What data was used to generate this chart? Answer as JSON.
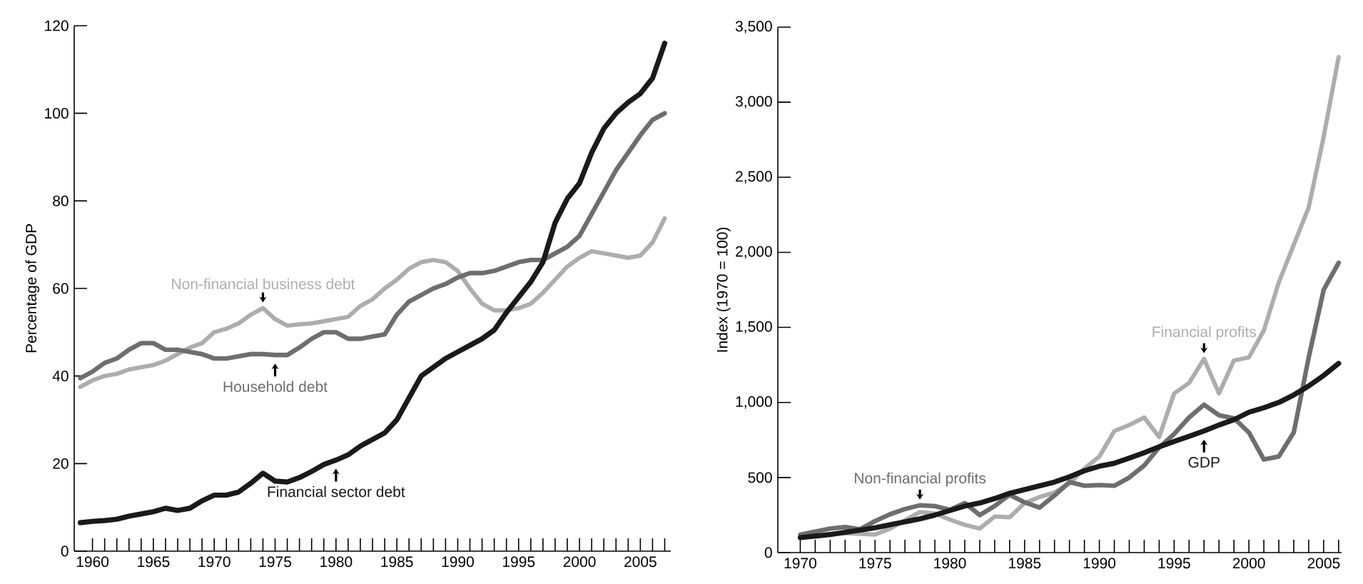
{
  "chart_data": [
    {
      "type": "line",
      "ylabel": "Percentage of GDP",
      "x": [
        1959,
        1960,
        1961,
        1962,
        1963,
        1964,
        1965,
        1966,
        1967,
        1968,
        1969,
        1970,
        1971,
        1972,
        1973,
        1974,
        1975,
        1976,
        1977,
        1978,
        1979,
        1980,
        1981,
        1982,
        1983,
        1984,
        1985,
        1986,
        1987,
        1988,
        1989,
        1990,
        1991,
        1992,
        1993,
        1994,
        1995,
        1996,
        1997,
        1998,
        1999,
        2000,
        2001,
        2002,
        2003,
        2004,
        2005,
        2006,
        2007
      ],
      "series": [
        {
          "name": "Non-financial business debt",
          "color": "#adadad",
          "values": [
            37.5,
            39,
            40,
            40.5,
            41.5,
            42,
            42.5,
            43.5,
            45,
            46.5,
            47.5,
            50,
            50.8,
            52,
            54,
            55.5,
            53,
            51.5,
            51.8,
            52,
            52.5,
            53,
            53.5,
            56,
            57.5,
            60,
            62,
            64.5,
            66,
            66.5,
            66,
            64,
            60,
            56.5,
            55,
            55,
            55.5,
            56.5,
            59,
            62,
            65,
            67,
            68.5,
            68,
            67.5,
            67,
            67.5,
            70.5,
            76
          ]
        },
        {
          "name": "Household debt",
          "color": "#6e6e6e",
          "values": [
            39.5,
            41,
            43,
            44,
            46,
            47.5,
            47.5,
            46,
            46,
            45.5,
            45,
            44,
            44,
            44.5,
            45,
            45,
            44.8,
            44.8,
            46.5,
            48.5,
            50,
            50,
            48.5,
            48.5,
            49,
            49.5,
            54,
            57,
            58.5,
            60,
            61,
            62.5,
            63.5,
            63.5,
            64,
            65,
            66,
            66.5,
            66.5,
            68,
            69.5,
            72,
            77,
            82,
            87,
            91,
            95,
            98.5,
            100
          ]
        },
        {
          "name": "Financial sector debt",
          "color": "#1a1a1a",
          "values": [
            6.5,
            6.8,
            7,
            7.3,
            8,
            8.5,
            9,
            9.8,
            9.3,
            9.8,
            11.5,
            12.8,
            12.8,
            13.5,
            15.5,
            17.8,
            16,
            15.8,
            16.8,
            18.2,
            19.8,
            20.8,
            22,
            24,
            25.5,
            27,
            30,
            35,
            40,
            42,
            44,
            45.5,
            47,
            48.5,
            50.5,
            54.5,
            58,
            61.5,
            66,
            75,
            80.5,
            84,
            91,
            96.5,
            100,
            102.5,
            104.5,
            108,
            116
          ]
        }
      ],
      "xlim": [
        1958.5,
        2007.5
      ],
      "ylim": [
        0,
        120
      ],
      "xticks": [
        1960,
        {
          "value": 1961,
          "label": null
        },
        {
          "value": 1962,
          "label": null
        },
        {
          "value": 1963,
          "label": null
        },
        {
          "value": 1964,
          "label": null
        },
        1965,
        {
          "value": 1966,
          "label": null
        },
        {
          "value": 1967,
          "label": null
        },
        {
          "value": 1968,
          "label": null
        },
        {
          "value": 1969,
          "label": null
        },
        1970,
        {
          "value": 1971,
          "label": null
        },
        {
          "value": 1972,
          "label": null
        },
        {
          "value": 1973,
          "label": null
        },
        {
          "value": 1974,
          "label": null
        },
        1975,
        {
          "value": 1976,
          "label": null
        },
        {
          "value": 1977,
          "label": null
        },
        {
          "value": 1978,
          "label": null
        },
        {
          "value": 1979,
          "label": null
        },
        1980,
        {
          "value": 1981,
          "label": null
        },
        {
          "value": 1982,
          "label": null
        },
        {
          "value": 1983,
          "label": null
        },
        {
          "value": 1984,
          "label": null
        },
        1985,
        {
          "value": 1986,
          "label": null
        },
        {
          "value": 1987,
          "label": null
        },
        {
          "value": 1988,
          "label": null
        },
        {
          "value": 1989,
          "label": null
        },
        1990,
        {
          "value": 1991,
          "label": null
        },
        {
          "value": 1992,
          "label": null
        },
        {
          "value": 1993,
          "label": null
        },
        {
          "value": 1994,
          "label": null
        },
        1995,
        {
          "value": 1996,
          "label": null
        },
        {
          "value": 1997,
          "label": null
        },
        {
          "value": 1998,
          "label": null
        },
        {
          "value": 1999,
          "label": null
        },
        2000,
        {
          "value": 2001,
          "label": null
        },
        {
          "value": 2002,
          "label": null
        },
        {
          "value": 2003,
          "label": null
        },
        {
          "value": 2004,
          "label": null
        },
        2005,
        {
          "value": 2006,
          "label": null
        },
        {
          "value": 2007,
          "label": null
        }
      ],
      "yticks": [
        0,
        20,
        40,
        60,
        80,
        100,
        120
      ]
    },
    {
      "type": "line",
      "ylabel": "Index (1970 = 100)",
      "x": [
        1970,
        1971,
        1972,
        1973,
        1974,
        1975,
        1976,
        1977,
        1978,
        1979,
        1980,
        1981,
        1982,
        1983,
        1984,
        1985,
        1986,
        1987,
        1988,
        1989,
        1990,
        1991,
        1992,
        1993,
        1994,
        1995,
        1996,
        1997,
        1998,
        1999,
        2000,
        2001,
        2002,
        2003,
        2004,
        2005,
        2006
      ],
      "series": [
        {
          "name": "Financial profits",
          "color": "#adadad",
          "values": [
            100,
            110,
            125,
            130,
            125,
            120,
            160,
            215,
            270,
            260,
            220,
            185,
            160,
            240,
            235,
            330,
            370,
            400,
            460,
            560,
            640,
            810,
            850,
            900,
            770,
            1060,
            1130,
            1290,
            1060,
            1280,
            1300,
            1480,
            1800,
            2050,
            2300,
            2770,
            3300
          ]
        },
        {
          "name": "Non-financial profits",
          "color": "#6e6e6e",
          "values": [
            120,
            140,
            160,
            170,
            155,
            210,
            255,
            290,
            315,
            310,
            285,
            330,
            250,
            310,
            385,
            335,
            300,
            380,
            470,
            445,
            450,
            445,
            500,
            580,
            700,
            790,
            900,
            985,
            915,
            895,
            800,
            620,
            640,
            800,
            1300,
            1750,
            1930
          ]
        },
        {
          "name": "GDP",
          "color": "#1a1a1a",
          "values": [
            100,
            110,
            120,
            135,
            150,
            165,
            185,
            205,
            225,
            250,
            280,
            310,
            330,
            360,
            395,
            420,
            445,
            470,
            505,
            545,
            575,
            595,
            630,
            665,
            705,
            740,
            775,
            810,
            850,
            885,
            935,
            965,
            1000,
            1050,
            1110,
            1180,
            1260
          ]
        }
      ],
      "xlim": [
        1968.5,
        2006.2
      ],
      "ylim": [
        0,
        3500
      ],
      "xticks": [
        1970,
        {
          "value": 1971,
          "label": null
        },
        {
          "value": 1972,
          "label": null
        },
        {
          "value": 1973,
          "label": null
        },
        {
          "value": 1974,
          "label": null
        },
        1975,
        {
          "value": 1976,
          "label": null
        },
        {
          "value": 1977,
          "label": null
        },
        {
          "value": 1978,
          "label": null
        },
        {
          "value": 1979,
          "label": null
        },
        1980,
        {
          "value": 1981,
          "label": null
        },
        {
          "value": 1982,
          "label": null
        },
        {
          "value": 1983,
          "label": null
        },
        {
          "value": 1984,
          "label": null
        },
        1985,
        {
          "value": 1986,
          "label": null
        },
        {
          "value": 1987,
          "label": null
        },
        {
          "value": 1988,
          "label": null
        },
        {
          "value": 1989,
          "label": null
        },
        1990,
        {
          "value": 1991,
          "label": null
        },
        {
          "value": 1992,
          "label": null
        },
        {
          "value": 1993,
          "label": null
        },
        {
          "value": 1994,
          "label": null
        },
        1995,
        {
          "value": 1996,
          "label": null
        },
        {
          "value": 1997,
          "label": null
        },
        {
          "value": 1998,
          "label": null
        },
        {
          "value": 1999,
          "label": null
        },
        2000,
        {
          "value": 2001,
          "label": null
        },
        {
          "value": 2002,
          "label": null
        },
        {
          "value": 2003,
          "label": null
        },
        {
          "value": 2004,
          "label": null
        },
        2005,
        {
          "value": 2006,
          "label": null
        }
      ],
      "yticks": [
        0,
        500,
        {
          "value": 1000,
          "label": "1,000"
        },
        {
          "value": 1500,
          "label": "1,500"
        },
        {
          "value": 2000,
          "label": "2,000"
        },
        {
          "value": 2500,
          "label": "2,500"
        },
        {
          "value": 3000,
          "label": "3,000"
        },
        {
          "value": 3500,
          "label": "3,500"
        }
      ]
    }
  ]
}
